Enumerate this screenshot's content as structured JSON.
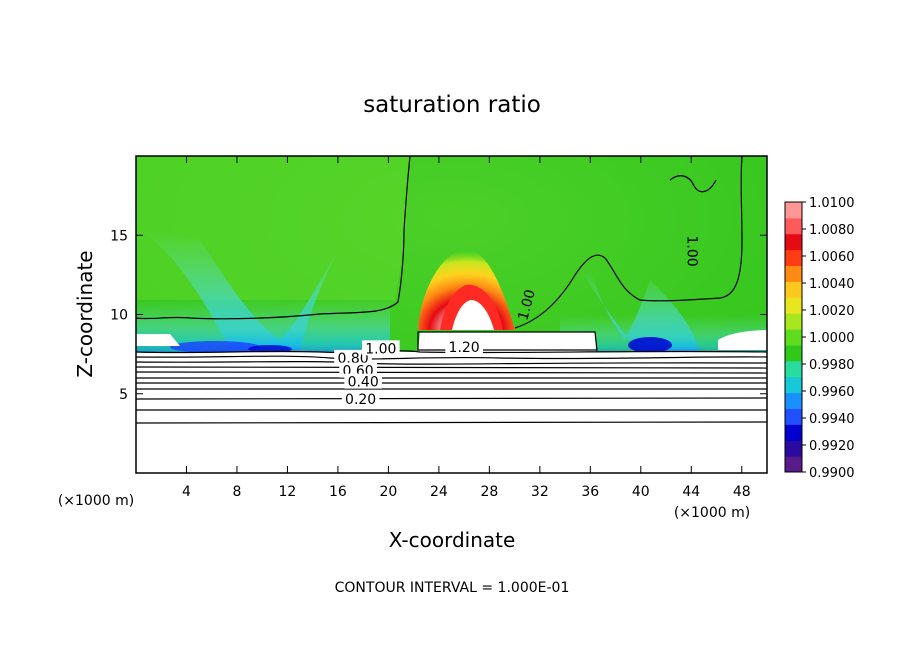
{
  "chart_data": {
    "type": "heatmap",
    "title": "saturation ratio",
    "xlabel": "X-coordinate",
    "ylabel": "Z-coordinate",
    "x_unit": "(×1000 m)",
    "y_unit": "(×1000 m)",
    "xlim": [
      0,
      50
    ],
    "ylim": [
      0,
      20
    ],
    "x_ticks": [
      4,
      8,
      12,
      16,
      20,
      24,
      28,
      32,
      36,
      40,
      44,
      48
    ],
    "y_ticks": [
      5,
      10,
      15
    ],
    "colorbar": {
      "min": 0.99,
      "max": 1.01,
      "labels": [
        "1.0100",
        "1.0080",
        "1.0060",
        "1.0040",
        "1.0020",
        "1.0000",
        "0.9980",
        "0.9960",
        "0.9940",
        "0.9920",
        "0.9900"
      ],
      "bands": [
        "#5a1a8a",
        "#2a0aa0",
        "#0000d0",
        "#2050ff",
        "#1a90ff",
        "#16c8d8",
        "#28dca0",
        "#30c81a",
        "#60dc1e",
        "#a8e61e",
        "#e8e61e",
        "#ffc81e",
        "#ff8a14",
        "#ff3c14",
        "#e60a14",
        "#ff5a5a",
        "#ff9696"
      ]
    },
    "contour_labels": [
      {
        "text": "1.20",
        "x": 26.0,
        "z": 7.9
      },
      {
        "text": "1.00",
        "x": 31.0,
        "z": 10.6
      },
      {
        "text": "1.00",
        "x": 44.0,
        "z": 14.0
      },
      {
        "text": "0.80",
        "x": 17.2,
        "z": 7.2
      },
      {
        "text": "0.60",
        "x": 17.6,
        "z": 6.4
      },
      {
        "text": "0.40",
        "x": 18.0,
        "z": 5.7
      },
      {
        "text": "0.20",
        "x": 17.8,
        "z": 4.6
      },
      {
        "text": "1.00",
        "x": 19.4,
        "z": 7.8
      }
    ],
    "contour_interval_text": "CONTOUR INTERVAL = 1.000E-01"
  }
}
